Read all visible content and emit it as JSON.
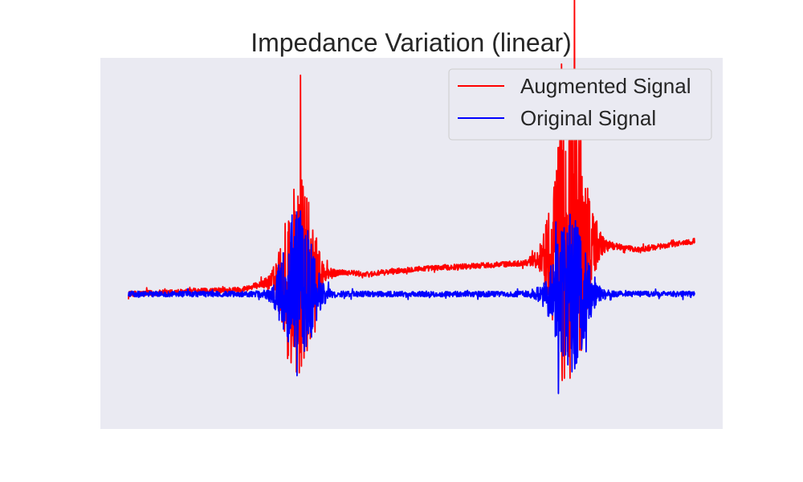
{
  "chart_data": {
    "type": "line",
    "title": "Impedance Variation (linear)",
    "xlabel": "",
    "ylabel": "",
    "axes_visible": false,
    "grid": false,
    "background_color": "#eaeaf2",
    "legend": {
      "placement": "top-right"
    },
    "series": [
      {
        "name": "Augmented Signal",
        "color": "#ff0000",
        "description": "noisy trace with two high-amplitude bursts; baseline drifts upward over time",
        "baseline": [
          [
            0,
            0.0
          ],
          [
            0.2,
            0.05
          ],
          [
            0.24,
            0.12
          ],
          [
            0.38,
            0.25
          ],
          [
            0.42,
            0.22
          ],
          [
            0.5,
            0.28
          ],
          [
            0.7,
            0.35
          ],
          [
            0.78,
            0.55
          ],
          [
            0.85,
            0.55
          ],
          [
            0.9,
            0.5
          ],
          [
            1.0,
            0.6
          ]
        ],
        "bursts": [
          {
            "center": 0.3,
            "width": 0.09,
            "peak": 1.7
          },
          {
            "center": 0.78,
            "width": 0.1,
            "peak": 2.5
          }
        ]
      },
      {
        "name": "Original Signal",
        "color": "#0000ff",
        "description": "noisy trace centered on zero with two high-amplitude bursts",
        "baseline": [
          [
            0,
            0.0
          ],
          [
            1.0,
            0.0
          ]
        ],
        "bursts": [
          {
            "center": 0.3,
            "width": 0.09,
            "peak": 1.35
          },
          {
            "center": 0.78,
            "width": 0.1,
            "peak": 1.25
          }
        ]
      }
    ]
  }
}
